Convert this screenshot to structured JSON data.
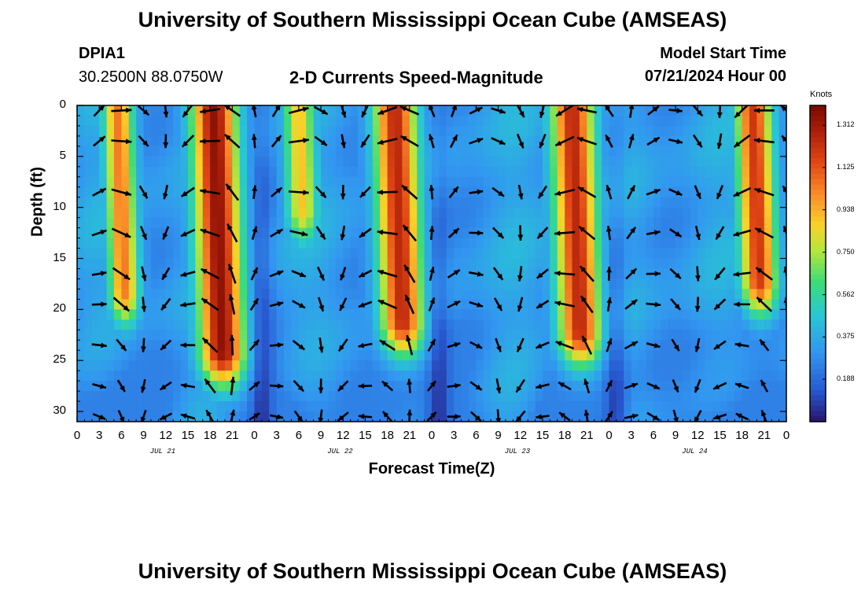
{
  "header": {
    "title_top": "University of Southern Mississippi Ocean Cube (AMSEAS)",
    "title_bottom": "University of Southern Mississippi Ocean Cube (AMSEAS)",
    "station_id": "DPIA1",
    "station_coords": "30.2500N  88.0750W",
    "plot_title": "2-D Currents Speed-Magnitude",
    "model_start_label": "Model Start Time",
    "model_start_value": "07/21/2024 Hour 00"
  },
  "chart_data": {
    "type": "heatmap",
    "title": "2-D Currents Speed-Magnitude",
    "xlabel": "Forecast Time(Z)",
    "ylabel": "Depth (ft)",
    "x_range_hours": [
      0,
      96
    ],
    "ylim": [
      0,
      31
    ],
    "x_tick_labels": [
      "0",
      "3",
      "6",
      "9",
      "12",
      "15",
      "18",
      "21",
      "0",
      "3",
      "6",
      "9",
      "12",
      "15",
      "18",
      "21",
      "0",
      "3",
      "6",
      "9",
      "12",
      "15",
      "18",
      "21",
      "0",
      "3",
      "6",
      "9",
      "12",
      "15",
      "18",
      "21",
      "0"
    ],
    "day_labels": [
      {
        "label": "JUL 21",
        "hour": 12
      },
      {
        "label": "JUL 22",
        "hour": 36
      },
      {
        "label": "JUL 23",
        "hour": 60
      },
      {
        "label": "JUL 24",
        "hour": 84
      }
    ],
    "y_ticks": [
      0,
      5,
      10,
      15,
      20,
      25,
      30
    ],
    "colorbar": {
      "unit": "Knots",
      "min": 0,
      "max": 1.4,
      "tick_labels": [
        "1.312",
        "1.125",
        "0.938",
        "0.750",
        "0.562",
        "0.375",
        "0.188"
      ],
      "tick_values": [
        1.312,
        1.125,
        0.938,
        0.75,
        0.562,
        0.375,
        0.188
      ]
    },
    "high_speed_bands": [
      {
        "center_hour": 5.5,
        "half_width_hours": 2.5,
        "max_depth_ft": 18,
        "peak_knots": 1.05
      },
      {
        "center_hour": 18.5,
        "half_width_hours": 3.8,
        "max_depth_ft": 24,
        "peak_knots": 1.35
      },
      {
        "center_hour": 30.0,
        "half_width_hours": 2.6,
        "max_depth_ft": 10,
        "peak_knots": 0.9
      },
      {
        "center_hour": 43.0,
        "half_width_hours": 3.6,
        "max_depth_ft": 21,
        "peak_knots": 1.25
      },
      {
        "center_hour": 67.0,
        "half_width_hours": 3.6,
        "max_depth_ft": 22,
        "peak_knots": 1.25
      },
      {
        "center_hour": 91.5,
        "half_width_hours": 3.0,
        "max_depth_ft": 17,
        "peak_knots": 1.2
      }
    ],
    "vector_times_hours": [
      3,
      6,
      9,
      12,
      15,
      18,
      21,
      24,
      27,
      30,
      33,
      36,
      39,
      42,
      45,
      48,
      51,
      54,
      57,
      60,
      63,
      66,
      69,
      72,
      75,
      78,
      81,
      84,
      87,
      90,
      93,
      96
    ],
    "vector_depths_ft": [
      0,
      3,
      8,
      12,
      16,
      19,
      23,
      27,
      30
    ]
  }
}
